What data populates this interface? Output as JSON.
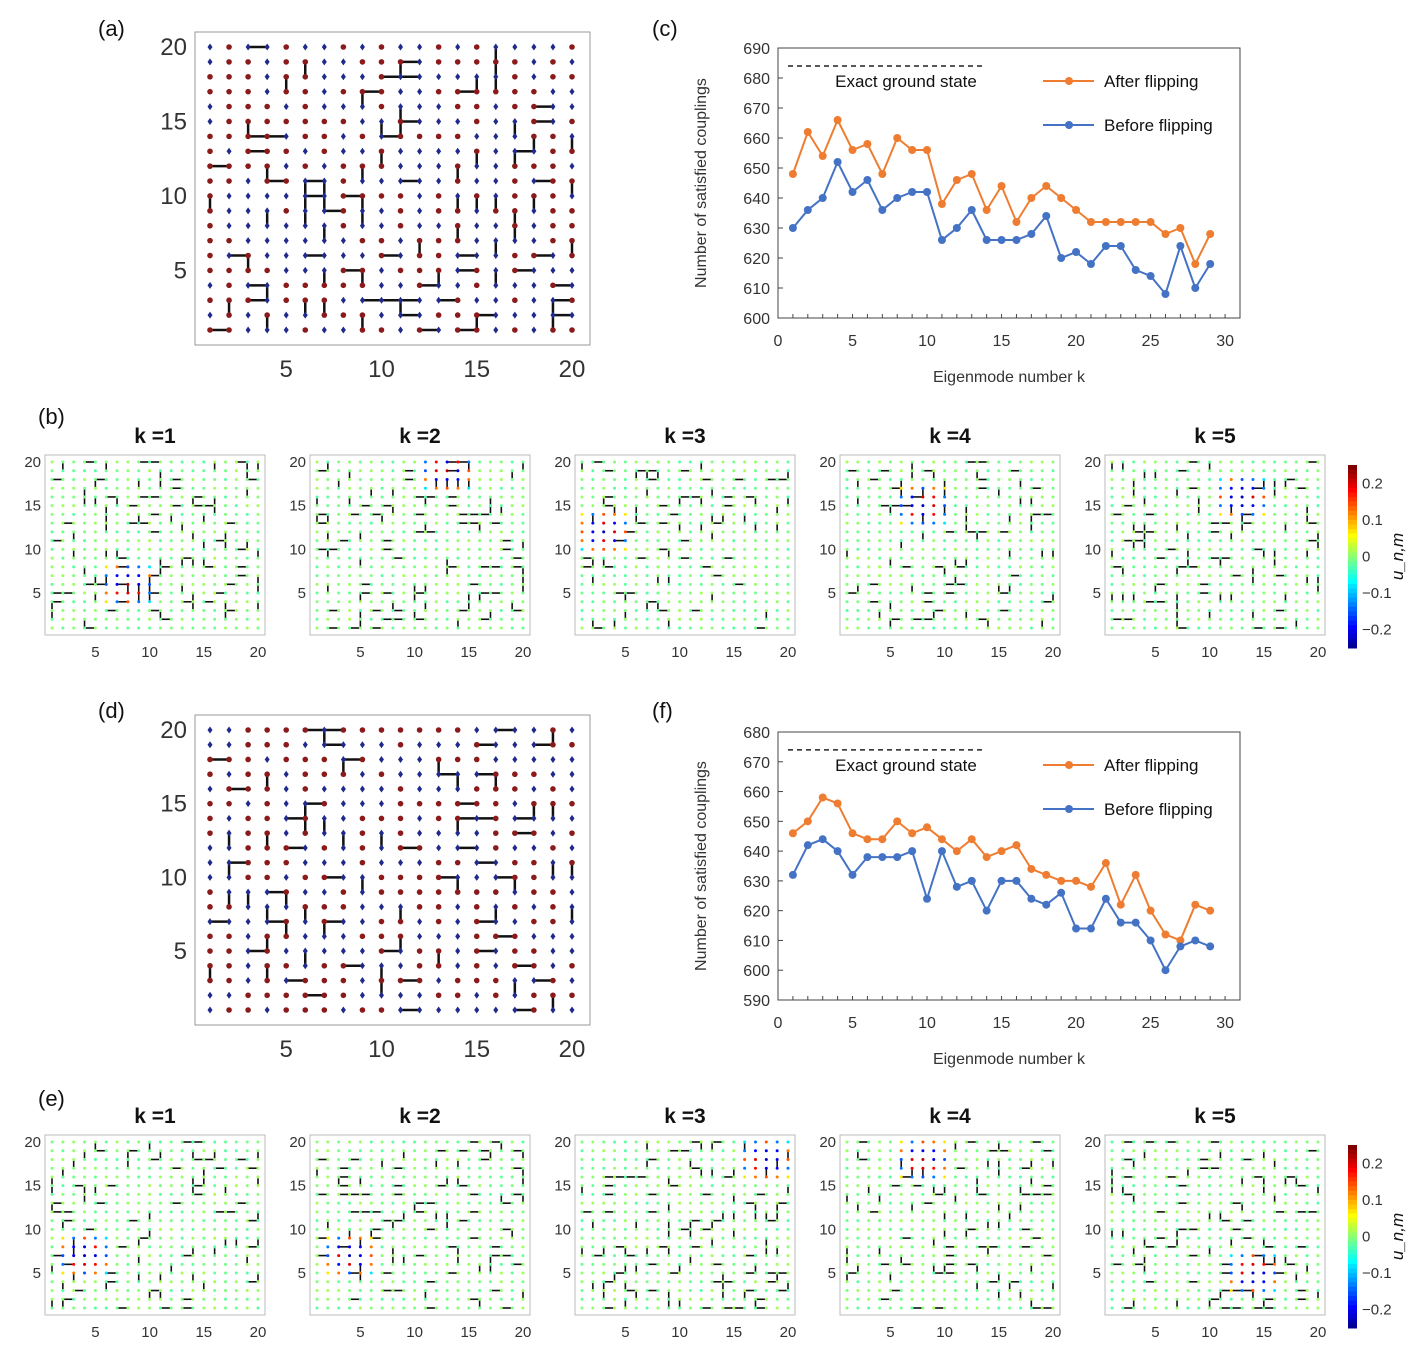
{
  "panel_labels": {
    "a": "(a)",
    "b": "(b)",
    "c": "(c)",
    "d": "(d)",
    "e": "(e)",
    "f": "(f)"
  },
  "lattice_ticks": [
    "5",
    "10",
    "15",
    "20"
  ],
  "small_titles": [
    "k =1",
    "k =2",
    "k =3",
    "k =4",
    "k =5"
  ],
  "colorbar": {
    "label": "u_n,m",
    "ticks": [
      "0.2",
      "0.1",
      "0",
      "−0.1",
      "−0.2"
    ],
    "range": [
      -0.25,
      0.25
    ]
  },
  "colors": {
    "after": "#ef7d31",
    "before": "#4472c4",
    "spin_up": "#8b1a1a",
    "spin_down": "#1f2a8c"
  },
  "chart_data": [
    {
      "id": "c",
      "type": "line",
      "xlabel": "Eigenmode number k",
      "ylabel": "Number of satisfied couplings",
      "xlim": [
        0,
        31
      ],
      "ylim": [
        600,
        690
      ],
      "xticks": [
        0,
        5,
        10,
        15,
        20,
        25,
        30
      ],
      "yticks": [
        600,
        610,
        620,
        630,
        640,
        650,
        660,
        670,
        680,
        690
      ],
      "legend_position": "top-right",
      "reference": {
        "label": "Exact ground state",
        "value": 684
      },
      "x": [
        1,
        2,
        3,
        4,
        5,
        6,
        7,
        8,
        9,
        10,
        11,
        12,
        13,
        14,
        15,
        16,
        17,
        18,
        19,
        20,
        21,
        22,
        23,
        24,
        25,
        26,
        27,
        28,
        29
      ],
      "series": [
        {
          "name": "After flipping",
          "values": [
            648,
            662,
            654,
            666,
            656,
            658,
            648,
            660,
            656,
            656,
            638,
            646,
            648,
            636,
            644,
            632,
            640,
            644,
            640,
            636,
            632,
            632,
            632,
            632,
            632,
            628,
            630,
            618,
            628
          ]
        },
        {
          "name": "Before flipping",
          "values": [
            630,
            636,
            640,
            652,
            642,
            646,
            636,
            640,
            642,
            642,
            626,
            630,
            636,
            626,
            626,
            626,
            628,
            634,
            620,
            622,
            618,
            624,
            624,
            616,
            614,
            608,
            624,
            610,
            618
          ]
        }
      ]
    },
    {
      "id": "f",
      "type": "line",
      "xlabel": "Eigenmode number k",
      "ylabel": "Number of satisfied couplings",
      "xlim": [
        0,
        31
      ],
      "ylim": [
        590,
        680
      ],
      "xticks": [
        0,
        5,
        10,
        15,
        20,
        25,
        30
      ],
      "yticks": [
        590,
        600,
        610,
        620,
        630,
        640,
        650,
        660,
        670,
        680
      ],
      "legend_position": "top-right",
      "reference": {
        "label": "Exact ground state",
        "value": 674
      },
      "x": [
        1,
        2,
        3,
        4,
        5,
        6,
        7,
        8,
        9,
        10,
        11,
        12,
        13,
        14,
        15,
        16,
        17,
        18,
        19,
        20,
        21,
        22,
        23,
        24,
        25,
        26,
        27,
        28,
        29
      ],
      "series": [
        {
          "name": "After flipping",
          "values": [
            646,
            650,
            658,
            656,
            646,
            644,
            644,
            650,
            646,
            648,
            644,
            640,
            644,
            638,
            640,
            642,
            634,
            632,
            630,
            630,
            628,
            636,
            622,
            632,
            620,
            612,
            610,
            622,
            620
          ]
        },
        {
          "name": "Before flipping",
          "values": [
            632,
            642,
            644,
            640,
            632,
            638,
            638,
            638,
            640,
            624,
            640,
            628,
            630,
            620,
            630,
            630,
            624,
            622,
            626,
            614,
            614,
            624,
            616,
            616,
            610,
            600,
            608,
            610,
            608
          ]
        }
      ]
    }
  ]
}
